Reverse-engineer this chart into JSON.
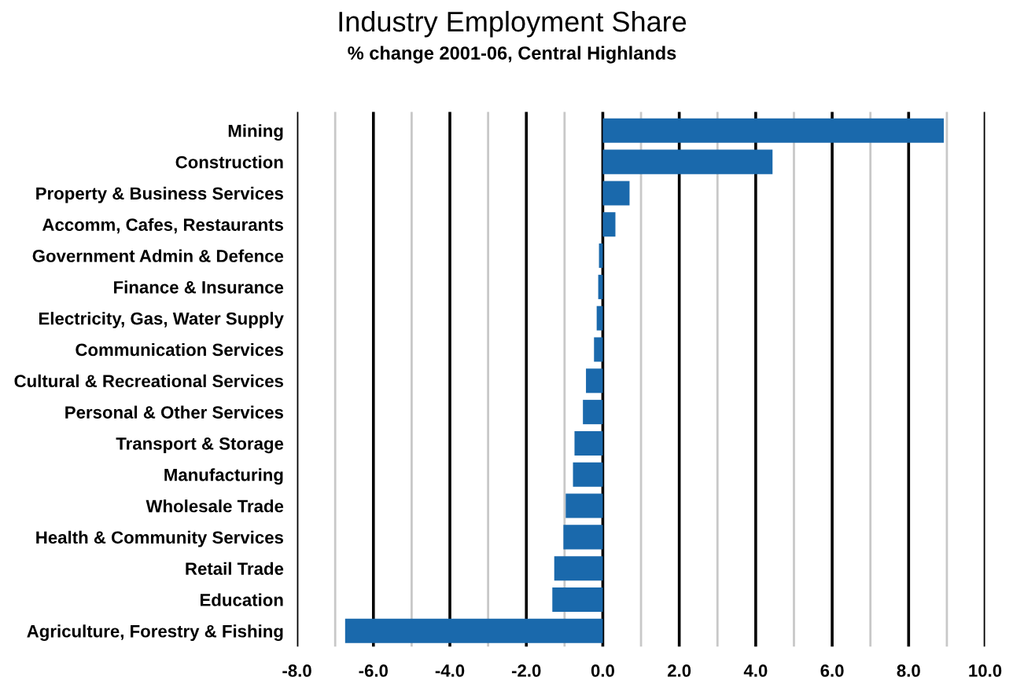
{
  "chart_data": {
    "type": "bar",
    "orientation": "horizontal",
    "title": "Industry Employment Share",
    "subtitle": "% change 2001-06, Central Highlands",
    "categories": [
      "Mining",
      "Construction",
      "Property & Business Services",
      "Accomm, Cafes, Restaurants",
      "Government Admin & Defence",
      "Finance & Insurance",
      "Electricity, Gas, Water Supply",
      "Communication Services",
      "Cultural & Recreational Services",
      "Personal & Other Services",
      "Transport & Storage",
      "Manufacturing",
      "Wholesale Trade",
      "Health & Community Services",
      "Retail Trade",
      "Education",
      "Agriculture, Forestry & Fishing"
    ],
    "values": [
      8.92,
      4.44,
      0.7,
      0.33,
      -0.1,
      -0.12,
      -0.16,
      -0.23,
      -0.44,
      -0.52,
      -0.74,
      -0.78,
      -0.97,
      -1.03,
      -1.27,
      -1.32,
      -6.74
    ],
    "color": "#1a69ac",
    "xlim": [
      -8,
      10
    ],
    "xticks": [
      {
        "value": -8,
        "label": "-8.0"
      },
      {
        "value": -7,
        "label": null
      },
      {
        "value": -6,
        "label": "-6.0"
      },
      {
        "value": -5,
        "label": null
      },
      {
        "value": -4,
        "label": "-4.0"
      },
      {
        "value": -3,
        "label": null
      },
      {
        "value": -2,
        "label": "-2.0"
      },
      {
        "value": -1,
        "label": null
      },
      {
        "value": 0,
        "label": "0.0"
      },
      {
        "value": 1,
        "label": null
      },
      {
        "value": 2,
        "label": "2.0"
      },
      {
        "value": 3,
        "label": null
      },
      {
        "value": 4,
        "label": "4.0"
      },
      {
        "value": 5,
        "label": null
      },
      {
        "value": 6,
        "label": "6.0"
      },
      {
        "value": 7,
        "label": null
      },
      {
        "value": 8,
        "label": "8.0"
      },
      {
        "value": 9,
        "label": null
      },
      {
        "value": 10,
        "label": "10.0"
      }
    ],
    "grid": "x",
    "legend": false
  }
}
